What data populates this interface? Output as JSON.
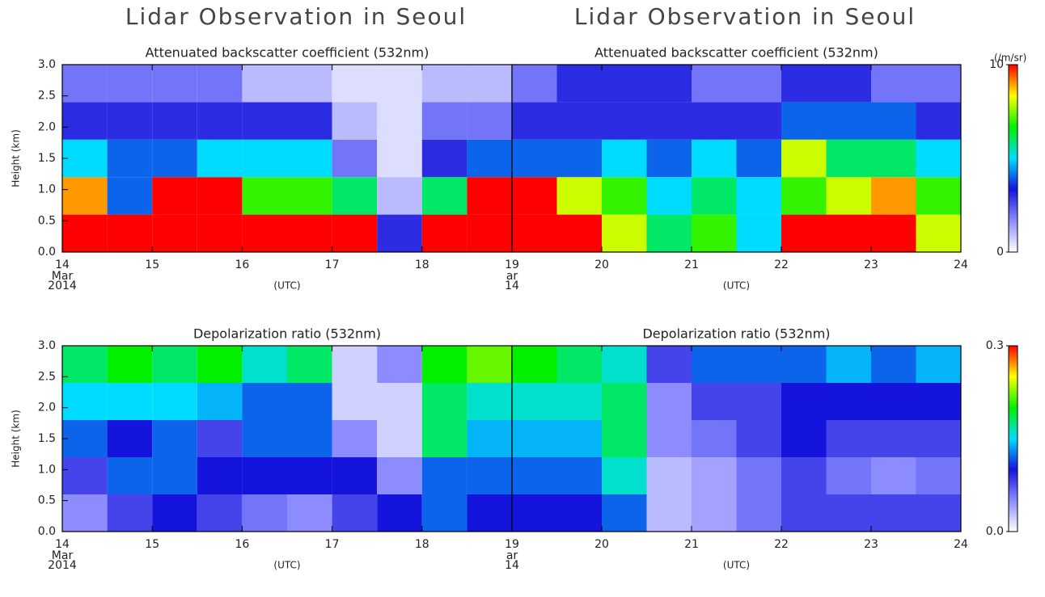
{
  "titles": [
    "Lidar Observation in Seoul",
    "Lidar Observation in Seoul"
  ],
  "chart_data": [
    {
      "type": "heatmap",
      "title": "Attenuated backscatter coefficient (532nm)",
      "ylabel": "Height (km)",
      "xlabel": "(UTC)",
      "date_label": [
        "Mar",
        "2014"
      ],
      "xlim": [
        14,
        19
      ],
      "xticks": [
        14,
        15,
        16,
        17,
        18
      ],
      "ylim": [
        0,
        3
      ],
      "yticks": [
        {
          "value": 0,
          "label": "0.0"
        },
        {
          "value": 0.5,
          "label": "0.5"
        },
        {
          "value": 1,
          "label": "1.0"
        },
        {
          "value": 1.5,
          "label": "1.5"
        },
        {
          "value": 2,
          "label": "2.0"
        },
        {
          "value": 2.5,
          "label": "2.5"
        },
        {
          "value": 3,
          "label": "3.0"
        }
      ],
      "x": [
        14.25,
        14.75,
        15.25,
        15.75,
        16.25,
        16.75,
        17.25,
        17.75,
        18.25,
        18.75
      ],
      "y": [
        0.3,
        0.9,
        1.5,
        2.1,
        2.7
      ],
      "zlim": [
        0,
        10
      ],
      "colormap": [
        "#ffffff",
        "#8c8cff",
        "#1414dc",
        "#00dcff",
        "#00f000",
        "#ffff00",
        "#ff0000"
      ],
      "z": [
        [
          10,
          9,
          5,
          3,
          2
        ],
        [
          10,
          4,
          4,
          3,
          2
        ],
        [
          10,
          10,
          4,
          3,
          2
        ],
        [
          10,
          10,
          5,
          3,
          2
        ],
        [
          10,
          7,
          5,
          3,
          1
        ],
        [
          10,
          7,
          5,
          3,
          1
        ],
        [
          10,
          6,
          2,
          1,
          0.5
        ],
        [
          3,
          1,
          0.5,
          0.5,
          0.5
        ],
        [
          10,
          6,
          3,
          2,
          1
        ],
        [
          10,
          10,
          4,
          2,
          1
        ]
      ]
    },
    {
      "type": "heatmap",
      "title": "Attenuated backscatter coefficient (532nm)",
      "xlabel": "(UTC)",
      "date_label": [
        "ar",
        "14"
      ],
      "xlim": [
        19,
        24
      ],
      "xticks": [
        19,
        20,
        21,
        22,
        23,
        24
      ],
      "ylim": [
        0,
        3
      ],
      "x": [
        19.25,
        19.75,
        20.25,
        20.75,
        21.25,
        21.75,
        22.25,
        22.75,
        23.25,
        23.75
      ],
      "y": [
        0.3,
        0.9,
        1.5,
        2.1,
        2.7
      ],
      "zlim": [
        0,
        10
      ],
      "colormap": [
        "#ffffff",
        "#8c8cff",
        "#1414dc",
        "#00dcff",
        "#00f000",
        "#ffff00",
        "#ff0000"
      ],
      "colorbar": {
        "ticks": [
          0,
          10
        ],
        "unit": "(/m/sr)"
      },
      "z": [
        [
          10,
          10,
          4,
          3,
          2
        ],
        [
          10,
          8,
          4,
          3,
          3
        ],
        [
          8,
          7,
          5,
          3,
          3
        ],
        [
          6,
          5,
          4,
          3,
          3
        ],
        [
          7,
          6,
          5,
          3,
          2
        ],
        [
          5,
          5,
          4,
          3,
          2
        ],
        [
          10,
          7,
          8,
          4,
          3
        ],
        [
          10,
          8,
          6,
          4,
          3
        ],
        [
          10,
          9,
          6,
          4,
          2
        ],
        [
          8,
          7,
          5,
          3,
          2
        ]
      ]
    },
    {
      "type": "heatmap",
      "title": "Depolarization ratio (532nm)",
      "ylabel": "Height (km)",
      "xlabel": "(UTC)",
      "date_label": [
        "Mar",
        "2014"
      ],
      "xlim": [
        14,
        19
      ],
      "xticks": [
        14,
        15,
        16,
        17,
        18
      ],
      "ylim": [
        0,
        3
      ],
      "yticks": [
        {
          "value": 0,
          "label": "0.0"
        },
        {
          "value": 0.5,
          "label": "0.5"
        },
        {
          "value": 1,
          "label": "1.0"
        },
        {
          "value": 1.5,
          "label": "1.5"
        },
        {
          "value": 2,
          "label": "2.0"
        },
        {
          "value": 2.5,
          "label": "2.5"
        },
        {
          "value": 3,
          "label": "3.0"
        }
      ],
      "x": [
        14.25,
        14.75,
        15.25,
        15.75,
        16.25,
        16.75,
        17.25,
        17.75,
        18.25,
        18.75
      ],
      "y": [
        0.3,
        0.9,
        1.5,
        2.1,
        2.7
      ],
      "zlim": [
        0,
        0.3
      ],
      "colormap": [
        "#ffffff",
        "#8c8cff",
        "#1414dc",
        "#00dcff",
        "#00f000",
        "#ffff00",
        "#ff0000"
      ],
      "z": [
        [
          0.05,
          0.08,
          0.12,
          0.15,
          0.18
        ],
        [
          0.08,
          0.12,
          0.1,
          0.15,
          0.2
        ],
        [
          0.1,
          0.12,
          0.12,
          0.15,
          0.18
        ],
        [
          0.08,
          0.1,
          0.08,
          0.14,
          0.2
        ],
        [
          0.06,
          0.1,
          0.12,
          0.12,
          0.16
        ],
        [
          0.05,
          0.1,
          0.12,
          0.12,
          0.18
        ],
        [
          0.08,
          0.1,
          0.05,
          0.02,
          0.02
        ],
        [
          0.1,
          0.05,
          0.02,
          0.02,
          0.05
        ],
        [
          0.12,
          0.12,
          0.18,
          0.18,
          0.2
        ],
        [
          0.1,
          0.12,
          0.14,
          0.16,
          0.22
        ]
      ]
    },
    {
      "type": "heatmap",
      "title": "Depolarization ratio (532nm)",
      "xlabel": "(UTC)",
      "date_label": [
        "ar",
        "14"
      ],
      "xlim": [
        19,
        24
      ],
      "xticks": [
        19,
        20,
        21,
        22,
        23,
        24
      ],
      "ylim": [
        0,
        3
      ],
      "x": [
        19.25,
        19.75,
        20.25,
        20.75,
        21.25,
        21.75,
        22.25,
        22.75,
        23.25,
        23.75
      ],
      "y": [
        0.3,
        0.9,
        1.5,
        2.1,
        2.7
      ],
      "zlim": [
        0,
        0.3
      ],
      "colormap": [
        "#ffffff",
        "#8c8cff",
        "#1414dc",
        "#00dcff",
        "#00f000",
        "#ffff00",
        "#ff0000"
      ],
      "colorbar": {
        "ticks": [
          {
            "value": 0,
            "label": "0.0"
          },
          {
            "value": 0.3,
            "label": "0.3"
          }
        ]
      },
      "z": [
        [
          0.1,
          0.12,
          0.14,
          0.16,
          0.2
        ],
        [
          0.1,
          0.12,
          0.14,
          0.16,
          0.18
        ],
        [
          0.12,
          0.16,
          0.18,
          0.18,
          0.16
        ],
        [
          0.03,
          0.03,
          0.05,
          0.05,
          0.08
        ],
        [
          0.04,
          0.04,
          0.06,
          0.08,
          0.12
        ],
        [
          0.06,
          0.06,
          0.08,
          0.08,
          0.12
        ],
        [
          0.08,
          0.08,
          0.1,
          0.1,
          0.12
        ],
        [
          0.08,
          0.06,
          0.08,
          0.1,
          0.14
        ],
        [
          0.08,
          0.05,
          0.08,
          0.1,
          0.12
        ],
        [
          0.08,
          0.06,
          0.08,
          0.1,
          0.14
        ]
      ]
    }
  ]
}
